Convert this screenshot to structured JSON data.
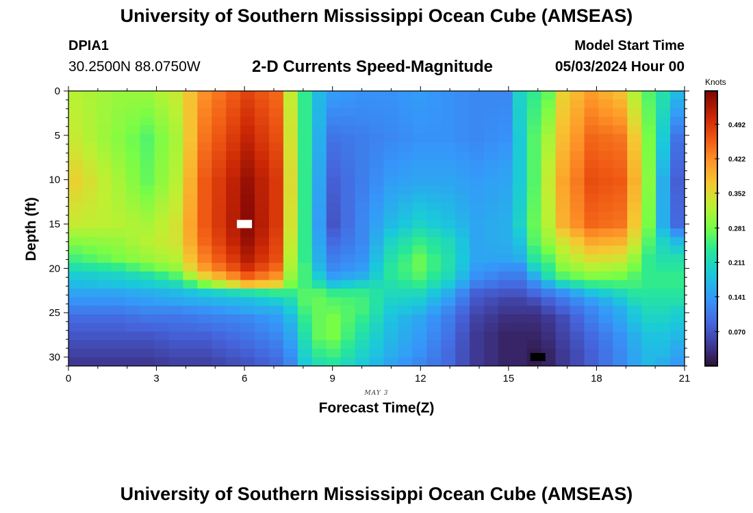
{
  "header": {
    "title": "University of Southern Mississippi Ocean Cube (AMSEAS)",
    "station_id": "DPIA1",
    "coordinates": "30.2500N  88.0750W",
    "subtitle": "2-D Currents Speed-Magnitude",
    "model_start_label": "Model Start Time",
    "model_start_value": "05/03/2024 Hour 00"
  },
  "footer": {
    "title": "University of Southern Mississippi Ocean Cube (AMSEAS)"
  },
  "chart_data": {
    "type": "heatmap",
    "title": "2-D Currents Speed-Magnitude",
    "xlabel": "Forecast Time(Z)",
    "ylabel": "Depth (ft)",
    "date_annotation": "MAY 3",
    "x_range": [
      0,
      21
    ],
    "x_ticks": [
      0,
      3,
      6,
      9,
      12,
      15,
      18,
      21
    ],
    "y_range": [
      0,
      31
    ],
    "y_inverted": true,
    "y_ticks": [
      0,
      5,
      10,
      15,
      20,
      25,
      30
    ],
    "colorbar": {
      "unit": "Knots",
      "range": [
        0.0,
        0.56
      ],
      "tick_values": [
        0.07,
        0.141,
        0.211,
        0.281,
        0.352,
        0.422,
        0.492
      ],
      "tick_labels": [
        "0.070",
        "0.141",
        "0.211",
        "0.281",
        "0.352",
        "0.422",
        "0.492"
      ],
      "colormap": "turbo"
    },
    "time_nodes": [
      0,
      0.5,
      1,
      1.5,
      2,
      2.5,
      3,
      3.5,
      4,
      4.5,
      5,
      5.5,
      6,
      6.5,
      7,
      7.5,
      8,
      8.5,
      9,
      9.5,
      10,
      10.5,
      11,
      11.5,
      12,
      12.5,
      13,
      13.5,
      14,
      14.5,
      15,
      15.5,
      16,
      16.5,
      17,
      17.5,
      18,
      18.5,
      19,
      19.5,
      20,
      20.5,
      21
    ],
    "depth_nodes": [
      0,
      5,
      10,
      15,
      17,
      19,
      20,
      21,
      22,
      23,
      24,
      25,
      26,
      28,
      30,
      31
    ],
    "profiles": [
      {
        "time": 0,
        "values": [
          0.32,
          0.33,
          0.36,
          0.33,
          0.29,
          0.25,
          0.22,
          0.19,
          0.17,
          0.15,
          0.13,
          0.11,
          0.09,
          0.07,
          0.05,
          0.04
        ]
      },
      {
        "time": 1.5,
        "values": [
          0.3,
          0.29,
          0.31,
          0.32,
          0.3,
          0.28,
          0.24,
          0.2,
          0.18,
          0.15,
          0.13,
          0.11,
          0.09,
          0.07,
          0.05,
          0.04
        ]
      },
      {
        "time": 2.5,
        "values": [
          0.3,
          0.26,
          0.27,
          0.31,
          0.32,
          0.3,
          0.27,
          0.22,
          0.19,
          0.16,
          0.14,
          0.12,
          0.1,
          0.07,
          0.05,
          0.04
        ]
      },
      {
        "time": 3.5,
        "values": [
          0.33,
          0.31,
          0.32,
          0.34,
          0.34,
          0.32,
          0.3,
          0.26,
          0.21,
          0.17,
          0.15,
          0.12,
          0.1,
          0.08,
          0.06,
          0.05
        ]
      },
      {
        "time": 4.5,
        "values": [
          0.42,
          0.44,
          0.46,
          0.46,
          0.45,
          0.43,
          0.41,
          0.36,
          0.28,
          0.19,
          0.16,
          0.13,
          0.11,
          0.08,
          0.06,
          0.05
        ]
      },
      {
        "time": 6,
        "values": [
          0.48,
          0.51,
          0.54,
          0.55,
          0.54,
          0.52,
          0.5,
          0.46,
          0.38,
          0.22,
          0.17,
          0.15,
          0.12,
          0.1,
          0.08,
          0.07
        ]
      },
      {
        "time": 7,
        "values": [
          0.45,
          0.47,
          0.49,
          0.49,
          0.48,
          0.47,
          0.45,
          0.42,
          0.36,
          0.24,
          0.19,
          0.16,
          0.14,
          0.12,
          0.1,
          0.09
        ]
      },
      {
        "time": 7.5,
        "values": [
          0.33,
          0.34,
          0.35,
          0.34,
          0.33,
          0.32,
          0.31,
          0.3,
          0.28,
          0.24,
          0.21,
          0.19,
          0.17,
          0.15,
          0.13,
          0.12
        ]
      },
      {
        "time": 8,
        "values": [
          0.24,
          0.24,
          0.24,
          0.24,
          0.24,
          0.24,
          0.25,
          0.25,
          0.25,
          0.26,
          0.26,
          0.25,
          0.24,
          0.22,
          0.2,
          0.19
        ]
      },
      {
        "time": 8.5,
        "values": [
          0.17,
          0.16,
          0.15,
          0.14,
          0.15,
          0.16,
          0.17,
          0.19,
          0.22,
          0.26,
          0.27,
          0.27,
          0.27,
          0.27,
          0.24,
          0.22
        ]
      },
      {
        "time": 9,
        "values": [
          0.14,
          0.1,
          0.08,
          0.07,
          0.09,
          0.11,
          0.12,
          0.14,
          0.18,
          0.24,
          0.26,
          0.27,
          0.28,
          0.28,
          0.25,
          0.23
        ]
      },
      {
        "time": 10,
        "values": [
          0.13,
          0.11,
          0.11,
          0.12,
          0.12,
          0.13,
          0.14,
          0.16,
          0.2,
          0.24,
          0.25,
          0.25,
          0.24,
          0.22,
          0.2,
          0.19
        ]
      },
      {
        "time": 11,
        "values": [
          0.13,
          0.12,
          0.14,
          0.17,
          0.2,
          0.22,
          0.23,
          0.23,
          0.22,
          0.21,
          0.2,
          0.19,
          0.18,
          0.17,
          0.16,
          0.15
        ]
      },
      {
        "time": 12,
        "values": [
          0.14,
          0.13,
          0.15,
          0.2,
          0.24,
          0.27,
          0.27,
          0.26,
          0.24,
          0.21,
          0.19,
          0.17,
          0.15,
          0.14,
          0.13,
          0.12
        ]
      },
      {
        "time": 13,
        "values": [
          0.13,
          0.13,
          0.15,
          0.18,
          0.21,
          0.22,
          0.22,
          0.21,
          0.19,
          0.16,
          0.14,
          0.12,
          0.11,
          0.1,
          0.09,
          0.09
        ]
      },
      {
        "time": 14,
        "values": [
          0.12,
          0.12,
          0.14,
          0.15,
          0.15,
          0.15,
          0.14,
          0.13,
          0.11,
          0.08,
          0.07,
          0.06,
          0.05,
          0.04,
          0.04,
          0.04
        ]
      },
      {
        "time": 15,
        "values": [
          0.12,
          0.13,
          0.15,
          0.16,
          0.16,
          0.15,
          0.13,
          0.11,
          0.09,
          0.07,
          0.05,
          0.04,
          0.03,
          0.02,
          0.02,
          0.02
        ]
      },
      {
        "time": 15.5,
        "values": [
          0.2,
          0.19,
          0.19,
          0.2,
          0.18,
          0.16,
          0.13,
          0.11,
          0.09,
          0.07,
          0.05,
          0.04,
          0.03,
          0.02,
          0.02,
          0.02
        ]
      },
      {
        "time": 16,
        "values": [
          0.24,
          0.26,
          0.26,
          0.27,
          0.26,
          0.23,
          0.2,
          0.16,
          0.12,
          0.09,
          0.06,
          0.04,
          0.03,
          0.02,
          0.01,
          0.01
        ]
      },
      {
        "time": 16.5,
        "values": [
          0.27,
          0.31,
          0.33,
          0.32,
          0.3,
          0.26,
          0.24,
          0.22,
          0.16,
          0.11,
          0.08,
          0.06,
          0.04,
          0.03,
          0.02,
          0.02
        ]
      },
      {
        "time": 17,
        "values": [
          0.36,
          0.38,
          0.4,
          0.39,
          0.34,
          0.31,
          0.29,
          0.26,
          0.2,
          0.13,
          0.1,
          0.08,
          0.06,
          0.05,
          0.04,
          0.04
        ]
      },
      {
        "time": 18,
        "values": [
          0.41,
          0.45,
          0.47,
          0.45,
          0.4,
          0.35,
          0.32,
          0.29,
          0.24,
          0.18,
          0.14,
          0.12,
          0.11,
          0.09,
          0.08,
          0.08
        ]
      },
      {
        "time": 19,
        "values": [
          0.38,
          0.44,
          0.46,
          0.44,
          0.39,
          0.34,
          0.31,
          0.28,
          0.25,
          0.21,
          0.18,
          0.16,
          0.15,
          0.13,
          0.12,
          0.12
        ]
      },
      {
        "time": 19.5,
        "values": [
          0.32,
          0.37,
          0.39,
          0.37,
          0.34,
          0.3,
          0.28,
          0.26,
          0.25,
          0.23,
          0.21,
          0.19,
          0.18,
          0.16,
          0.15,
          0.15
        ]
      },
      {
        "time": 20,
        "values": [
          0.26,
          0.28,
          0.29,
          0.28,
          0.26,
          0.24,
          0.24,
          0.24,
          0.24,
          0.23,
          0.22,
          0.21,
          0.2,
          0.18,
          0.17,
          0.17
        ]
      },
      {
        "time": 20.5,
        "values": [
          0.22,
          0.19,
          0.16,
          0.16,
          0.2,
          0.22,
          0.23,
          0.24,
          0.24,
          0.23,
          0.22,
          0.21,
          0.2,
          0.18,
          0.17,
          0.16
        ]
      },
      {
        "time": 21,
        "values": [
          0.17,
          0.1,
          0.08,
          0.09,
          0.17,
          0.22,
          0.23,
          0.24,
          0.24,
          0.23,
          0.22,
          0.2,
          0.19,
          0.17,
          0.15,
          0.14
        ]
      }
    ],
    "masked_cells": [
      {
        "time": 6,
        "depth": 15,
        "color": "#ffffff"
      },
      {
        "time": 16,
        "depth": 30,
        "color": "#000000"
      }
    ]
  }
}
